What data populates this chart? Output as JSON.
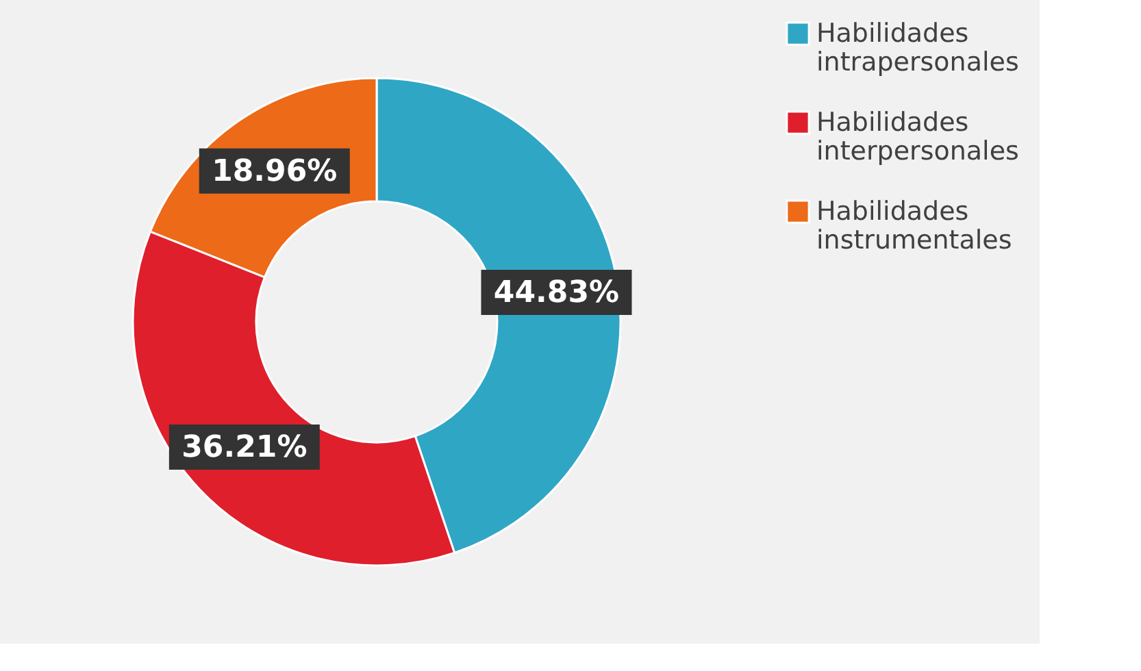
{
  "chart_data": {
    "type": "donut",
    "categories": [
      "Habilidades intrapersonales",
      "Habilidades interpersonales",
      "Habilidades instrumentales"
    ],
    "values": [
      44.83,
      36.21,
      18.96
    ],
    "colors": [
      "#30a6c5",
      "#df1f2c",
      "#ec6a18"
    ],
    "value_labels": [
      "44.83%",
      "36.21%",
      "18.96%"
    ],
    "legend": "right"
  }
}
